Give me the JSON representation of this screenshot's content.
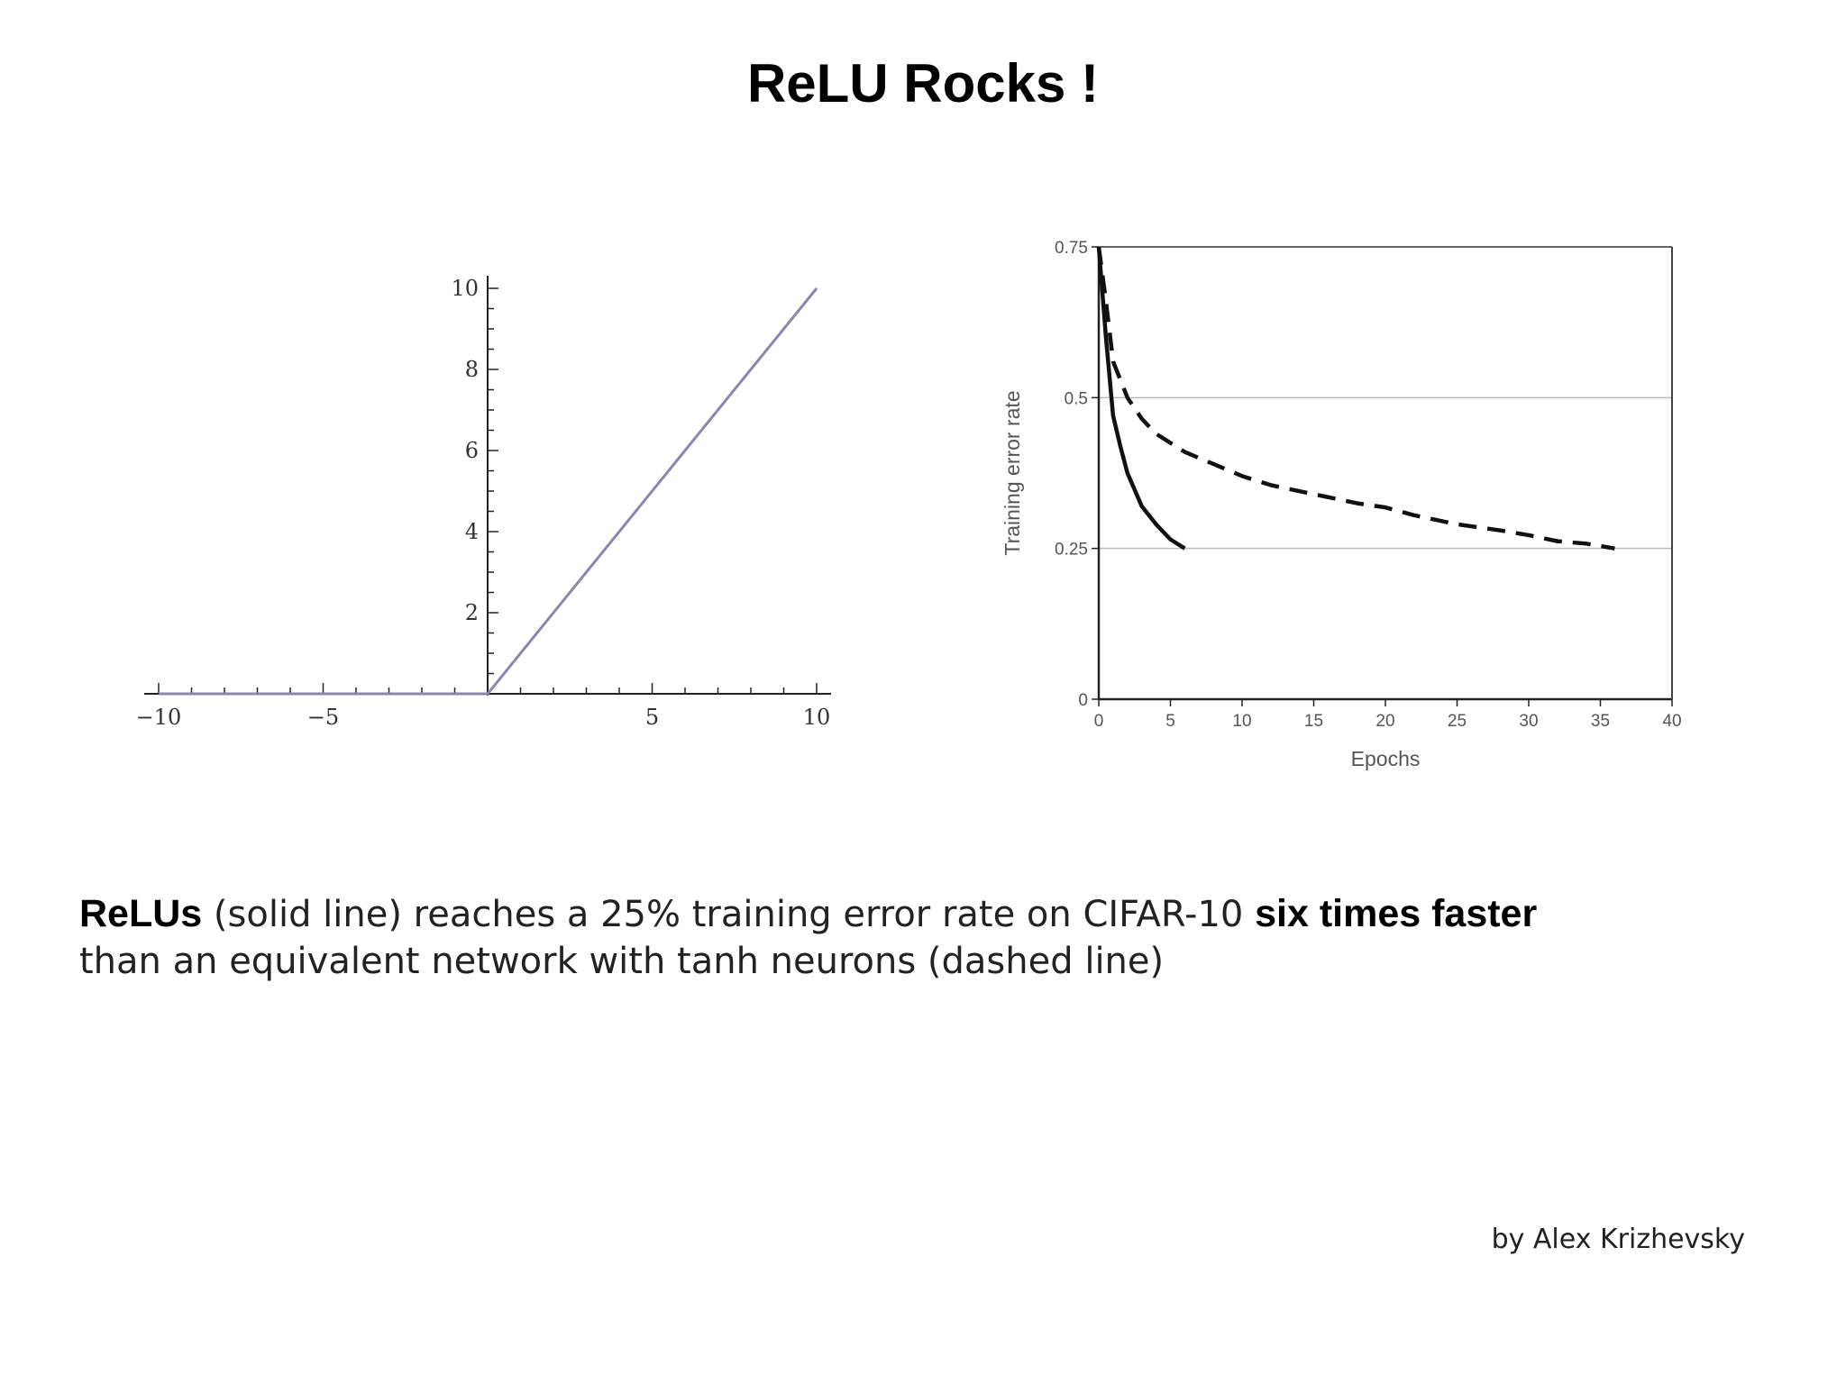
{
  "slide": {
    "title": "ReLU Rocks !",
    "caption": {
      "bold1": "ReLUs",
      "text1": " (solid line) reaches a 25% training error rate on CIFAR-10 ",
      "bold2": "six times faster",
      "text2": "than an equivalent network with tanh neurons (dashed line)"
    },
    "credit": "by Alex Krizhevsky"
  },
  "chart_data": [
    {
      "type": "line",
      "title": "",
      "xlabel": "",
      "ylabel": "",
      "xlim": [
        -10,
        10
      ],
      "ylim": [
        0,
        10
      ],
      "x_ticks": [
        -10,
        -5,
        5,
        10
      ],
      "x_tick_labels": [
        "−10",
        "−5",
        "5",
        "10"
      ],
      "y_ticks": [
        2,
        4,
        6,
        8,
        10
      ],
      "y_tick_labels": [
        "2",
        "4",
        "6",
        "8",
        "10"
      ],
      "grid": false,
      "series": [
        {
          "x": [
            -10,
            0,
            10
          ],
          "y": [
            0,
            0,
            10
          ],
          "color": "#8a86b0",
          "style": "solid"
        }
      ]
    },
    {
      "type": "line",
      "title": "",
      "xlabel": "Epochs",
      "ylabel": "Training error rate",
      "xlim": [
        0,
        40
      ],
      "ylim": [
        0,
        0.75
      ],
      "x_ticks": [
        0,
        5,
        10,
        15,
        20,
        25,
        30,
        35,
        40
      ],
      "y_ticks": [
        0,
        0.25,
        0.5,
        0.75
      ],
      "y_tick_labels": [
        "0",
        "0.25",
        "0.5",
        "0.75"
      ],
      "grid": "horizontal",
      "series": [
        {
          "style": "solid",
          "color": "#111111",
          "x": [
            0,
            0.5,
            1,
            1.5,
            2,
            3,
            4,
            5,
            6
          ],
          "y": [
            0.75,
            0.6,
            0.47,
            0.42,
            0.375,
            0.32,
            0.29,
            0.265,
            0.25
          ]
        },
        {
          "style": "dashed",
          "color": "#111111",
          "x": [
            0,
            0.5,
            1,
            2,
            3,
            4,
            5,
            6,
            7,
            8,
            10,
            12,
            15,
            18,
            20,
            22,
            25,
            28,
            30,
            32,
            34,
            36
          ],
          "y": [
            0.75,
            0.66,
            0.56,
            0.5,
            0.465,
            0.44,
            0.425,
            0.41,
            0.4,
            0.39,
            0.37,
            0.355,
            0.34,
            0.325,
            0.318,
            0.305,
            0.29,
            0.28,
            0.272,
            0.262,
            0.258,
            0.25
          ]
        }
      ]
    }
  ]
}
